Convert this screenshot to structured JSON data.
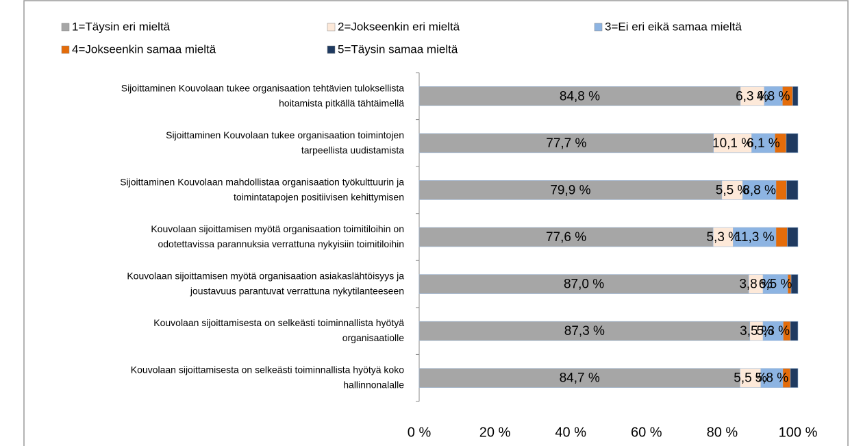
{
  "chart_data": {
    "type": "stacked-bar-horizontal",
    "categories": [
      "Sijoittaminen Kouvolaan tukee organisaation tehtävien tuloksellista\nhoitamista pitkällä tähtäimellä",
      "Sijoittaminen Kouvolaan tukee organisaation toimintojen\ntarpeellista uudistamista",
      "Sijoittaminen Kouvolaan mahdollistaa organisaation työkulttuurin ja\ntoimintatapojen positiivisen kehittymisen",
      "Kouvolaan sijoittamisen myötä organisaation toimitiloihin on\nodotettavissa parannuksia verrattuna nykyisiin toimitiloihin",
      "Kouvolaan sijoittamisen myötä organisaation asiakaslähtöisyys ja\njoustavuus parantuvat verrattuna nykytilanteeseen",
      "Kouvolaan sijoittamisesta on selkeästi toiminnallista hyötyä\norganisaatiolle",
      "Kouvolaan sijoittamisesta on selkeästi toiminnallista hyötyä koko\nhallinnonalalle"
    ],
    "series": [
      {
        "name": "1=Täysin eri mieltä",
        "color": "#a6a6a6",
        "values": [
          84.8,
          77.7,
          79.9,
          77.6,
          87.0,
          87.3,
          84.7
        ],
        "value_labels": [
          "84,8 %",
          "77,7 %",
          "79,9 %",
          "77,6 %",
          "87,0 %",
          "87,3 %",
          "84,7 %"
        ]
      },
      {
        "name": "2=Jokseenkin eri mieltä",
        "color": "#fde9d9",
        "values": [
          6.3,
          10.1,
          5.5,
          5.3,
          3.8,
          3.5,
          5.5
        ],
        "value_labels": [
          "6,3 %",
          "10,1 %",
          "5,5 %",
          "5,3 %",
          "3,8 %",
          "3,5 %",
          "5,5 %"
        ]
      },
      {
        "name": "3=Ei eri eikä samaa mieltä",
        "color": "#8db4e2",
        "values": [
          4.8,
          6.1,
          8.8,
          11.3,
          6.5,
          5.3,
          5.8
        ],
        "value_labels": [
          "4,8 %",
          "6,1 %",
          "8,8 %",
          "11,3 %",
          "6,5 %",
          "5,3 %",
          "5,8 %"
        ]
      },
      {
        "name": "4=Jokseenkin samaa mieltä",
        "color": "#e46c0a",
        "values": [
          2.7,
          3.0,
          2.8,
          3.0,
          0.9,
          1.9,
          2.0
        ]
      },
      {
        "name": "5=Täysin samaa mieltä",
        "color": "#1f3a60",
        "values": [
          1.4,
          3.1,
          3.0,
          2.8,
          1.8,
          2.0,
          2.0
        ]
      }
    ],
    "xlim": [
      0,
      100
    ],
    "xticks": [
      {
        "value": 0,
        "label": "0 %"
      },
      {
        "value": 20,
        "label": "20 %"
      },
      {
        "value": 40,
        "label": "40 %"
      },
      {
        "value": 60,
        "label": "60 %"
      },
      {
        "value": 80,
        "label": "80 %"
      },
      {
        "value": 100,
        "label": "100 %"
      }
    ]
  }
}
